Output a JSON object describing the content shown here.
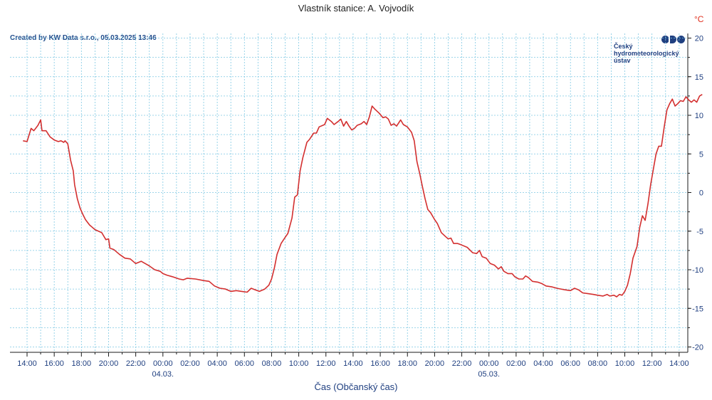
{
  "header": {
    "subtitle": "Vlastník stanice: A. Vojvodík",
    "credit": "Created by KW Data s.r.o., 05.03.2025 13:46",
    "unit": "°C"
  },
  "logo": {
    "line1": "Český",
    "line2": "hydrometeorologický",
    "line3": "ústav",
    "color": "#1f3f80"
  },
  "chart_data": {
    "type": "line",
    "xlabel": "Čas (Občanský čas)",
    "ylabel": "°C",
    "ylim": [
      -20,
      20
    ],
    "yticks": [
      -20,
      -15,
      -10,
      -5,
      0,
      5,
      10,
      15,
      20
    ],
    "x_hours_range": [
      -0.7,
      49.3
    ],
    "xticks": [
      {
        "h": 0,
        "label": "14:00"
      },
      {
        "h": 2,
        "label": "16:00"
      },
      {
        "h": 4,
        "label": "18:00"
      },
      {
        "h": 6,
        "label": "20:00"
      },
      {
        "h": 8,
        "label": "22:00"
      },
      {
        "h": 10,
        "label": "00:00"
      },
      {
        "h": 12,
        "label": "02:00"
      },
      {
        "h": 14,
        "label": "04:00"
      },
      {
        "h": 16,
        "label": "06:00"
      },
      {
        "h": 18,
        "label": "08:00"
      },
      {
        "h": 20,
        "label": "10:00"
      },
      {
        "h": 22,
        "label": "12:00"
      },
      {
        "h": 24,
        "label": "14:00"
      },
      {
        "h": 26,
        "label": "16:00"
      },
      {
        "h": 28,
        "label": "18:00"
      },
      {
        "h": 30,
        "label": "20:00"
      },
      {
        "h": 32,
        "label": "22:00"
      },
      {
        "h": 34,
        "label": "00:00"
      },
      {
        "h": 36,
        "label": "02:00"
      },
      {
        "h": 38,
        "label": "04:00"
      },
      {
        "h": 40,
        "label": "06:00"
      },
      {
        "h": 42,
        "label": "08:00"
      },
      {
        "h": 44,
        "label": "10:00"
      },
      {
        "h": 46,
        "label": "12:00"
      },
      {
        "h": 48,
        "label": "14:00"
      }
    ],
    "date_labels": [
      {
        "h": 10,
        "label": "04.03."
      },
      {
        "h": 34,
        "label": "05.03."
      }
    ],
    "grid": true,
    "series": [
      {
        "color": "#d32f2f",
        "points": [
          [
            -0.3,
            6.7
          ],
          [
            0.0,
            6.6
          ],
          [
            0.3,
            8.3
          ],
          [
            0.5,
            8.0
          ],
          [
            0.8,
            8.7
          ],
          [
            1.0,
            9.4
          ],
          [
            1.1,
            8.0
          ],
          [
            1.4,
            8.0
          ],
          [
            1.7,
            7.2
          ],
          [
            2.0,
            6.8
          ],
          [
            2.3,
            6.6
          ],
          [
            2.5,
            6.7
          ],
          [
            2.7,
            6.5
          ],
          [
            2.8,
            6.7
          ],
          [
            3.0,
            6.3
          ],
          [
            3.2,
            4.2
          ],
          [
            3.4,
            2.8
          ],
          [
            3.5,
            1.0
          ],
          [
            3.7,
            -0.8
          ],
          [
            3.9,
            -2.0
          ],
          [
            4.1,
            -2.8
          ],
          [
            4.3,
            -3.5
          ],
          [
            4.6,
            -4.2
          ],
          [
            5.0,
            -4.8
          ],
          [
            5.5,
            -5.2
          ],
          [
            5.8,
            -6.1
          ],
          [
            6.0,
            -6.0
          ],
          [
            6.1,
            -7.2
          ],
          [
            6.4,
            -7.4
          ],
          [
            6.8,
            -8.0
          ],
          [
            7.2,
            -8.5
          ],
          [
            7.6,
            -8.6
          ],
          [
            8.0,
            -9.2
          ],
          [
            8.4,
            -8.9
          ],
          [
            9.0,
            -9.5
          ],
          [
            9.4,
            -10.0
          ],
          [
            9.8,
            -10.2
          ],
          [
            10.0,
            -10.5
          ],
          [
            10.3,
            -10.7
          ],
          [
            10.7,
            -10.9
          ],
          [
            11.2,
            -11.2
          ],
          [
            11.5,
            -11.3
          ],
          [
            11.8,
            -11.1
          ],
          [
            12.4,
            -11.2
          ],
          [
            13.0,
            -11.4
          ],
          [
            13.4,
            -11.5
          ],
          [
            13.8,
            -12.1
          ],
          [
            14.2,
            -12.4
          ],
          [
            14.6,
            -12.5
          ],
          [
            15.0,
            -12.8
          ],
          [
            15.4,
            -12.7
          ],
          [
            15.8,
            -12.8
          ],
          [
            16.2,
            -12.9
          ],
          [
            16.5,
            -12.4
          ],
          [
            16.8,
            -12.6
          ],
          [
            17.1,
            -12.8
          ],
          [
            17.5,
            -12.5
          ],
          [
            17.8,
            -12.0
          ],
          [
            18.0,
            -11.2
          ],
          [
            18.2,
            -9.8
          ],
          [
            18.4,
            -8.0
          ],
          [
            18.7,
            -6.6
          ],
          [
            19.0,
            -5.8
          ],
          [
            19.2,
            -5.3
          ],
          [
            19.5,
            -3.3
          ],
          [
            19.7,
            -0.6
          ],
          [
            19.9,
            -0.3
          ],
          [
            20.1,
            2.8
          ],
          [
            20.3,
            4.5
          ],
          [
            20.6,
            6.5
          ],
          [
            20.8,
            6.9
          ],
          [
            21.1,
            7.7
          ],
          [
            21.3,
            7.7
          ],
          [
            21.5,
            8.5
          ],
          [
            21.9,
            8.8
          ],
          [
            22.1,
            9.6
          ],
          [
            22.4,
            9.2
          ],
          [
            22.6,
            8.8
          ],
          [
            22.9,
            9.2
          ],
          [
            23.1,
            9.5
          ],
          [
            23.3,
            8.6
          ],
          [
            23.5,
            9.2
          ],
          [
            23.7,
            8.6
          ],
          [
            23.9,
            8.1
          ],
          [
            24.1,
            8.3
          ],
          [
            24.3,
            8.7
          ],
          [
            24.6,
            8.9
          ],
          [
            24.8,
            9.2
          ],
          [
            25.0,
            8.8
          ],
          [
            25.2,
            9.8
          ],
          [
            25.4,
            11.2
          ],
          [
            25.6,
            10.8
          ],
          [
            25.9,
            10.3
          ],
          [
            26.2,
            9.7
          ],
          [
            26.4,
            9.8
          ],
          [
            26.6,
            9.5
          ],
          [
            26.8,
            8.7
          ],
          [
            27.0,
            8.9
          ],
          [
            27.2,
            8.6
          ],
          [
            27.5,
            9.4
          ],
          [
            27.7,
            8.8
          ],
          [
            28.0,
            8.5
          ],
          [
            28.3,
            7.8
          ],
          [
            28.5,
            6.7
          ],
          [
            28.7,
            4.0
          ],
          [
            28.9,
            2.5
          ],
          [
            29.1,
            0.8
          ],
          [
            29.3,
            -0.8
          ],
          [
            29.5,
            -2.2
          ],
          [
            29.7,
            -2.6
          ],
          [
            30.0,
            -3.5
          ],
          [
            30.2,
            -4.0
          ],
          [
            30.5,
            -5.2
          ],
          [
            30.8,
            -5.7
          ],
          [
            31.0,
            -6.0
          ],
          [
            31.2,
            -5.9
          ],
          [
            31.4,
            -6.6
          ],
          [
            31.7,
            -6.6
          ],
          [
            32.0,
            -6.8
          ],
          [
            32.4,
            -7.1
          ],
          [
            32.8,
            -7.8
          ],
          [
            33.1,
            -7.9
          ],
          [
            33.3,
            -7.5
          ],
          [
            33.5,
            -8.3
          ],
          [
            33.8,
            -8.5
          ],
          [
            34.1,
            -9.2
          ],
          [
            34.4,
            -9.4
          ],
          [
            34.7,
            -9.9
          ],
          [
            34.9,
            -9.6
          ],
          [
            35.1,
            -10.2
          ],
          [
            35.4,
            -10.5
          ],
          [
            35.7,
            -10.5
          ],
          [
            35.9,
            -10.9
          ],
          [
            36.2,
            -11.2
          ],
          [
            36.5,
            -11.2
          ],
          [
            36.7,
            -10.8
          ],
          [
            36.9,
            -11.0
          ],
          [
            37.2,
            -11.5
          ],
          [
            37.6,
            -11.6
          ],
          [
            37.9,
            -11.8
          ],
          [
            38.2,
            -12.1
          ],
          [
            38.6,
            -12.2
          ],
          [
            39.0,
            -12.4
          ],
          [
            39.3,
            -12.5
          ],
          [
            39.6,
            -12.6
          ],
          [
            40.0,
            -12.7
          ],
          [
            40.3,
            -12.4
          ],
          [
            40.6,
            -12.6
          ],
          [
            40.9,
            -13.0
          ],
          [
            41.3,
            -13.1
          ],
          [
            41.7,
            -13.2
          ],
          [
            42.0,
            -13.3
          ],
          [
            42.4,
            -13.4
          ],
          [
            42.7,
            -13.2
          ],
          [
            42.9,
            -13.4
          ],
          [
            43.2,
            -13.3
          ],
          [
            43.4,
            -13.5
          ],
          [
            43.6,
            -13.2
          ],
          [
            43.8,
            -13.3
          ],
          [
            44.0,
            -12.8
          ],
          [
            44.2,
            -12.0
          ],
          [
            44.4,
            -10.5
          ],
          [
            44.6,
            -8.5
          ],
          [
            44.9,
            -7.0
          ],
          [
            45.1,
            -4.5
          ],
          [
            45.3,
            -3.0
          ],
          [
            45.5,
            -3.6
          ],
          [
            45.7,
            -1.5
          ],
          [
            45.9,
            1.0
          ],
          [
            46.1,
            3.0
          ],
          [
            46.3,
            5.0
          ],
          [
            46.5,
            6.0
          ],
          [
            46.7,
            6.0
          ],
          [
            46.9,
            8.5
          ],
          [
            47.1,
            10.7
          ],
          [
            47.3,
            11.5
          ],
          [
            47.5,
            12.1
          ],
          [
            47.7,
            11.2
          ],
          [
            47.9,
            11.5
          ],
          [
            48.1,
            11.9
          ],
          [
            48.3,
            11.8
          ],
          [
            48.5,
            12.4
          ],
          [
            48.7,
            12.0
          ],
          [
            48.9,
            11.7
          ],
          [
            49.1,
            12.0
          ],
          [
            49.3,
            11.7
          ],
          [
            49.5,
            12.5
          ],
          [
            49.7,
            12.7
          ]
        ]
      }
    ]
  }
}
